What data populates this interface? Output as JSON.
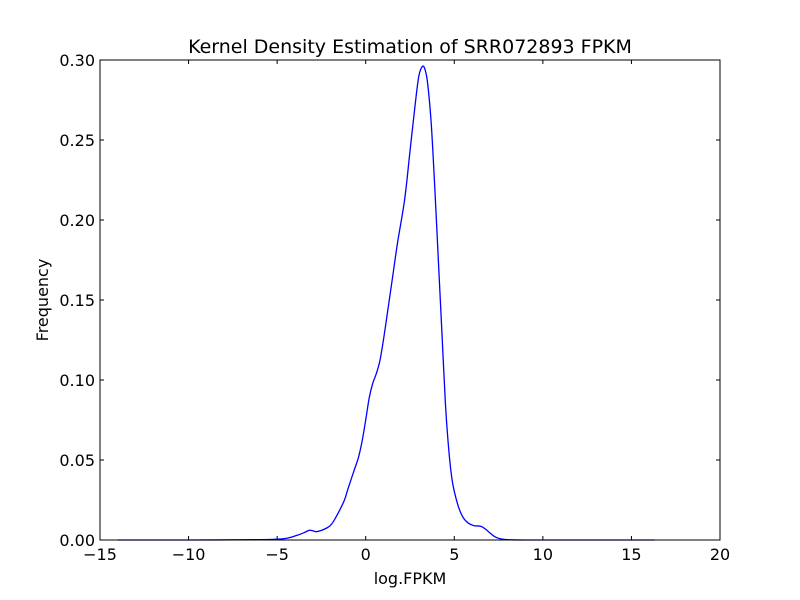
{
  "chart_data": {
    "type": "line",
    "title": "Kernel Density Estimation of SRR072893 FPKM",
    "xlabel": "log.FPKM",
    "ylabel": "Frequency",
    "xlim": [
      -15,
      20
    ],
    "ylim": [
      0,
      0.3
    ],
    "grid": false,
    "legend": "none",
    "line_color": "#0000ff",
    "x_ticks": [
      -15,
      -10,
      -5,
      0,
      5,
      10,
      15,
      20
    ],
    "x_tick_labels": [
      "−15",
      "−10",
      "−5",
      "0",
      "5",
      "10",
      "15",
      "20"
    ],
    "y_ticks": [
      0,
      0.05,
      0.1,
      0.15,
      0.2,
      0.25,
      0.3
    ],
    "y_tick_labels": [
      "0.00",
      "0.05",
      "0.10",
      "0.15",
      "0.20",
      "0.25",
      "0.30"
    ],
    "series": [
      {
        "x": [
          -14.0,
          -10.0,
          -6.0,
          -5.0,
          -4.5,
          -4.0,
          -3.5,
          -3.2,
          -3.0,
          -2.8,
          -2.5,
          -2.2,
          -2.0,
          -1.8,
          -1.5,
          -1.2,
          -1.0,
          -0.7,
          -0.4,
          -0.2,
          0.0,
          0.2,
          0.4,
          0.6,
          0.8,
          1.0,
          1.2,
          1.5,
          1.8,
          2.2,
          2.5,
          2.8,
          3.0,
          3.2,
          3.35,
          3.5,
          3.7,
          3.9,
          4.1,
          4.3,
          4.5,
          4.7,
          4.9,
          5.2,
          5.5,
          5.8,
          6.1,
          6.5,
          6.8,
          7.0,
          7.3,
          7.6,
          8.0,
          9.0,
          12.0,
          16.3
        ],
        "y": [
          0.0,
          0.0,
          0.0002,
          0.0005,
          0.001,
          0.0025,
          0.0045,
          0.006,
          0.0058,
          0.0052,
          0.006,
          0.0075,
          0.009,
          0.012,
          0.018,
          0.025,
          0.032,
          0.042,
          0.052,
          0.062,
          0.075,
          0.089,
          0.098,
          0.104,
          0.112,
          0.125,
          0.14,
          0.163,
          0.186,
          0.213,
          0.243,
          0.273,
          0.29,
          0.296,
          0.294,
          0.285,
          0.26,
          0.22,
          0.175,
          0.13,
          0.085,
          0.055,
          0.036,
          0.022,
          0.014,
          0.0105,
          0.009,
          0.0085,
          0.0065,
          0.0045,
          0.002,
          0.0008,
          0.0002,
          0.0,
          0.0,
          0.0
        ]
      }
    ]
  }
}
